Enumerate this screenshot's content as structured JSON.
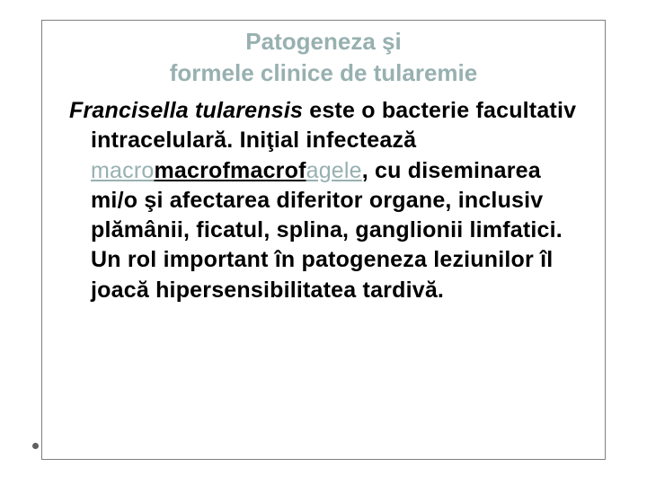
{
  "title": {
    "line1": "Patogeneza şi",
    "line2": "formele clinice de tularemie",
    "color": "#98b0b0",
    "fontsize": 26
  },
  "body": {
    "fontsize": 25,
    "color": "#000000",
    "link_color": "#98b0b0",
    "italic_part": "Francisella tularensis",
    "part1": " este o bacterie facultativ intracelulară. Iniţial infectează ",
    "link_seg1": "macro",
    "link_seg2": "macrof",
    "link_seg3": "macrof",
    "link_seg4": "agele",
    "part2": ", cu diseminarea mi/o şi afectarea diferitor organe, inclusiv plămânii, ficatul, splina, ganglionii limfatici. Un rol important în patogeneza leziunilor îl joacă hipersensibilitatea tardivă."
  }
}
